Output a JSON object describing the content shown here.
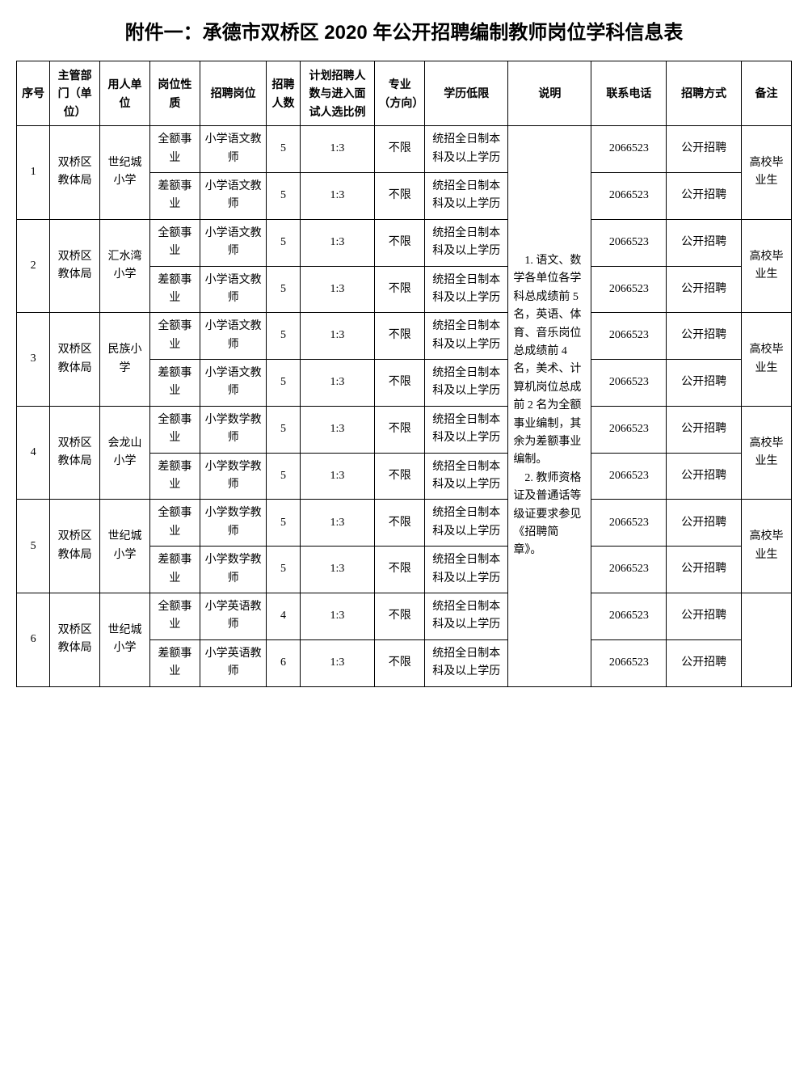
{
  "title": "附件一：承德市双桥区 2020 年公开招聘编制教师岗位学科信息表",
  "columns": [
    "序号",
    "主管部门（单位）",
    "用人单位",
    "岗位性质",
    "招聘岗位",
    "招聘人数",
    "计划招聘人数与进入面试人选比例",
    "专业（方向）",
    "学历低限",
    "说明",
    "联系电话",
    "招聘方式",
    "备注"
  ],
  "description": "    1. 语文、数学各单位各学科总成绩前 5 名，英语、体育、音乐岗位总成绩前 4 名，美术、计算机岗位总成前 2 名为全额事业编制，其余为差额事业编制。\n    2. 教师资格证及普通话等级证要求参见《招聘简章》。",
  "colors": {
    "border": "#000000",
    "background": "#ffffff",
    "text": "#000000"
  },
  "typography": {
    "title_fontsize": 24,
    "cell_fontsize": 14,
    "title_family": "SimHei",
    "body_family": "SimSun"
  },
  "groups": [
    {
      "seq": "1",
      "dept": "双桥区教体局",
      "unit": "世纪城小学",
      "remark": "高校毕业生",
      "rows": [
        {
          "nature": "全额事业",
          "position": "小学语文教师",
          "count": "5",
          "ratio": "1:3",
          "major": "不限",
          "edu": "统招全日制本科及以上学历",
          "phone": "2066523",
          "method": "公开招聘"
        },
        {
          "nature": "差额事业",
          "position": "小学语文教师",
          "count": "5",
          "ratio": "1:3",
          "major": "不限",
          "edu": "统招全日制本科及以上学历",
          "phone": "2066523",
          "method": "公开招聘"
        }
      ]
    },
    {
      "seq": "2",
      "dept": "双桥区教体局",
      "unit": "汇水湾小学",
      "remark": "高校毕业生",
      "rows": [
        {
          "nature": "全额事业",
          "position": "小学语文教师",
          "count": "5",
          "ratio": "1:3",
          "major": "不限",
          "edu": "统招全日制本科及以上学历",
          "phone": "2066523",
          "method": "公开招聘"
        },
        {
          "nature": "差额事业",
          "position": "小学语文教师",
          "count": "5",
          "ratio": "1:3",
          "major": "不限",
          "edu": "统招全日制本科及以上学历",
          "phone": "2066523",
          "method": "公开招聘"
        }
      ]
    },
    {
      "seq": "3",
      "dept": "双桥区教体局",
      "unit": "民族小学",
      "remark": "高校毕业生",
      "rows": [
        {
          "nature": "全额事业",
          "position": "小学语文教师",
          "count": "5",
          "ratio": "1:3",
          "major": "不限",
          "edu": "统招全日制本科及以上学历",
          "phone": "2066523",
          "method": "公开招聘"
        },
        {
          "nature": "差额事业",
          "position": "小学语文教师",
          "count": "5",
          "ratio": "1:3",
          "major": "不限",
          "edu": "统招全日制本科及以上学历",
          "phone": "2066523",
          "method": "公开招聘"
        }
      ]
    },
    {
      "seq": "4",
      "dept": "双桥区教体局",
      "unit": "会龙山小学",
      "remark": "高校毕业生",
      "rows": [
        {
          "nature": "全额事业",
          "position": "小学数学教师",
          "count": "5",
          "ratio": "1:3",
          "major": "不限",
          "edu": "统招全日制本科及以上学历",
          "phone": "2066523",
          "method": "公开招聘"
        },
        {
          "nature": "差额事业",
          "position": "小学数学教师",
          "count": "5",
          "ratio": "1:3",
          "major": "不限",
          "edu": "统招全日制本科及以上学历",
          "phone": "2066523",
          "method": "公开招聘"
        }
      ]
    },
    {
      "seq": "5",
      "dept": "双桥区教体局",
      "unit": "世纪城小学",
      "remark": "高校毕业生",
      "rows": [
        {
          "nature": "全额事业",
          "position": "小学数学教师",
          "count": "5",
          "ratio": "1:3",
          "major": "不限",
          "edu": "统招全日制本科及以上学历",
          "phone": "2066523",
          "method": "公开招聘"
        },
        {
          "nature": "差额事业",
          "position": "小学数学教师",
          "count": "5",
          "ratio": "1:3",
          "major": "不限",
          "edu": "统招全日制本科及以上学历",
          "phone": "2066523",
          "method": "公开招聘"
        }
      ]
    },
    {
      "seq": "6",
      "dept": "双桥区教体局",
      "unit": "世纪城小学",
      "remark": "",
      "rows": [
        {
          "nature": "全额事业",
          "position": "小学英语教师",
          "count": "4",
          "ratio": "1:3",
          "major": "不限",
          "edu": "统招全日制本科及以上学历",
          "phone": "2066523",
          "method": "公开招聘"
        },
        {
          "nature": "差额事业",
          "position": "小学英语教师",
          "count": "6",
          "ratio": "1:3",
          "major": "不限",
          "edu": "统招全日制本科及以上学历",
          "phone": "2066523",
          "method": "公开招聘"
        }
      ]
    }
  ]
}
